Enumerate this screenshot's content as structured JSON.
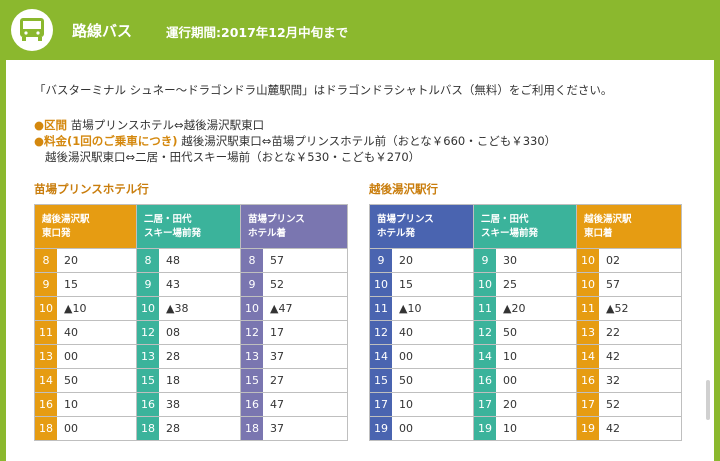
{
  "header": {
    "title": "路線バス",
    "period": "運行期間:2017年12月中旬まで",
    "icon": "bus-icon"
  },
  "intro": "「バスターミナル シュネー～ドラゴンドラ山麓駅間」はドラゴンドラシャトルバス（無料）をご利用ください。",
  "info": {
    "route_label": "区間",
    "route_text": "苗場プリンスホテル⇔越後湯沢駅東口",
    "fare_label": "料金(1回のご乗車につき)",
    "fare_text1": "越後湯沢駅東口⇔苗場プリンスホテル前（おとな￥660・こども￥330）",
    "fare_text2": "越後湯沢駅東口⇔二居・田代スキー場前（おとな￥530・こども￥270）"
  },
  "timetables": {
    "naeba": {
      "title": "苗場プリンスホテル行",
      "col1_l1": "越後湯沢駅",
      "col1_l2": "東口発",
      "col2_l1": "二居・田代",
      "col2_l2": "スキー場前発",
      "col3_l1": "苗場プリンス",
      "col3_l2": "ホテル着",
      "rows": [
        [
          "8",
          "20",
          "8",
          "48",
          "8",
          "57"
        ],
        [
          "9",
          "15",
          "9",
          "43",
          "9",
          "52"
        ],
        [
          "10",
          "▲10",
          "10",
          "▲38",
          "10",
          "▲47"
        ],
        [
          "11",
          "40",
          "12",
          "08",
          "12",
          "17"
        ],
        [
          "13",
          "00",
          "13",
          "28",
          "13",
          "37"
        ],
        [
          "14",
          "50",
          "15",
          "18",
          "15",
          "27"
        ],
        [
          "16",
          "10",
          "16",
          "38",
          "16",
          "47"
        ],
        [
          "18",
          "00",
          "18",
          "28",
          "18",
          "37"
        ]
      ]
    },
    "echigo": {
      "title": "越後湯沢駅行",
      "col1_l1": "苗場プリンス",
      "col1_l2": "ホテル発",
      "col2_l1": "二居・田代",
      "col2_l2": "スキー場前発",
      "col3_l1": "越後湯沢駅",
      "col3_l2": "東口着",
      "rows": [
        [
          "9",
          "20",
          "9",
          "30",
          "10",
          "02"
        ],
        [
          "10",
          "15",
          "10",
          "25",
          "10",
          "57"
        ],
        [
          "11",
          "▲10",
          "11",
          "▲20",
          "11",
          "▲52"
        ],
        [
          "12",
          "40",
          "12",
          "50",
          "13",
          "22"
        ],
        [
          "14",
          "00",
          "14",
          "10",
          "14",
          "42"
        ],
        [
          "15",
          "50",
          "16",
          "00",
          "16",
          "32"
        ],
        [
          "17",
          "10",
          "17",
          "20",
          "17",
          "52"
        ],
        [
          "19",
          "00",
          "19",
          "10",
          "19",
          "42"
        ]
      ]
    }
  },
  "colors": {
    "brand_green": "#8bb82e",
    "orange": "#e69c12",
    "teal": "#3bb39b",
    "purple": "#7a76b0",
    "blue": "#4a64b0"
  }
}
